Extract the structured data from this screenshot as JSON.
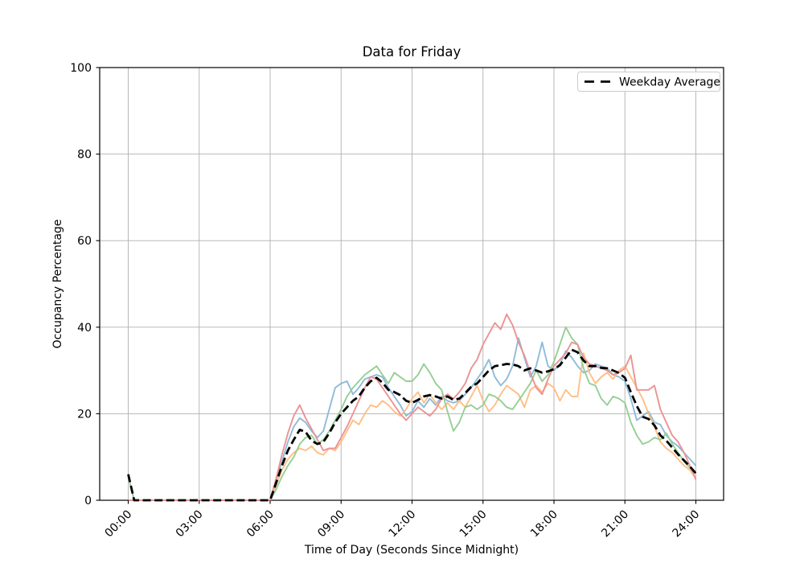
{
  "chart_data": {
    "type": "line",
    "title": "Data for Friday",
    "xlabel": "Time of Day (Seconds Since Midnight)",
    "ylabel": "Occupancy Percentage",
    "x_start_hour": 0,
    "x_step_hours": 0.25,
    "x_ticks_hours": [
      0,
      3,
      6,
      9,
      12,
      15,
      18,
      21,
      24
    ],
    "x_tick_labels": [
      "00:00",
      "03:00",
      "06:00",
      "09:00",
      "12:00",
      "15:00",
      "18:00",
      "21:00",
      "24:00"
    ],
    "y_ticks": [
      0,
      20,
      40,
      60,
      80,
      100
    ],
    "y_tick_labels": [
      "0",
      "20",
      "40",
      "60",
      "80",
      "100"
    ],
    "ylim": [
      0,
      100
    ],
    "xlim_hours": [
      -1.2,
      25.2
    ],
    "grid": true,
    "grid_color": "#b0b0b0",
    "legend": {
      "position": "upper right",
      "label": "Weekday Average"
    },
    "series": [
      {
        "name": "series-1",
        "color": "#8fbbd9",
        "style": "solid",
        "width": 1.9,
        "values": [
          0,
          0,
          0,
          0,
          0,
          0,
          0,
          0,
          0,
          0,
          0,
          0,
          0,
          0,
          0,
          0,
          0,
          0,
          0,
          0,
          0,
          0,
          0,
          0,
          0,
          4.5,
          9,
          13.5,
          17,
          19,
          18,
          16,
          14.5,
          16,
          21,
          26,
          27,
          27.5,
          24.5,
          26,
          28,
          28.5,
          29,
          28.5,
          26,
          24,
          22,
          19.5,
          20.5,
          23,
          21.5,
          23.5,
          22,
          24,
          23,
          22.5,
          23,
          24.5,
          26,
          28,
          30,
          32.5,
          28.5,
          26.5,
          28,
          31,
          37.5,
          33,
          28.5,
          31,
          36.5,
          31,
          30,
          31.5,
          34.5,
          33,
          31,
          29.5,
          30,
          31.5,
          31,
          30.5,
          29,
          28.5,
          27.5,
          23.5,
          18.5,
          19.5,
          20.5,
          18,
          17.5,
          15,
          13.5,
          12.5,
          11,
          9.5,
          8
        ]
      },
      {
        "name": "series-2",
        "color": "#ffbf86",
        "style": "solid",
        "width": 1.9,
        "values": [
          0,
          0,
          0,
          0,
          0,
          0,
          0,
          0,
          0,
          0,
          0,
          0,
          0,
          0,
          0,
          0,
          0,
          0,
          0,
          0,
          0,
          0,
          0,
          0,
          0,
          3.5,
          7,
          9.5,
          11,
          12,
          11.5,
          12.5,
          11,
          10.5,
          12,
          11.5,
          13.5,
          16,
          18.5,
          17.5,
          20,
          22,
          21.5,
          23,
          22,
          20.5,
          19.5,
          21,
          23.5,
          25,
          22.5,
          24.5,
          22.5,
          21,
          22.5,
          21,
          23,
          21.5,
          24,
          26.5,
          23,
          20.5,
          22,
          24.5,
          26.5,
          25.5,
          24.5,
          21.5,
          25.5,
          26.5,
          25,
          27,
          26,
          23,
          25.5,
          24,
          24,
          34,
          29.5,
          27,
          28.5,
          29.5,
          28,
          30,
          31,
          28.5,
          26,
          23.5,
          20,
          17,
          13.5,
          12,
          11,
          9.5,
          8,
          7,
          5
        ]
      },
      {
        "name": "series-3",
        "color": "#95cf95",
        "style": "solid",
        "width": 1.9,
        "values": [
          5.5,
          0,
          0,
          0,
          0,
          0,
          0,
          0,
          0,
          0,
          0,
          0,
          0,
          0,
          0,
          0,
          0,
          0,
          0,
          0,
          0,
          0,
          0,
          0,
          0,
          2.5,
          5.5,
          8,
          10,
          13,
          14.5,
          15,
          13,
          14,
          16,
          18.5,
          21,
          24,
          26,
          27.5,
          29,
          30,
          31,
          29,
          27,
          29.5,
          28.5,
          27.5,
          27.5,
          29,
          31.5,
          29.5,
          27,
          25.5,
          20.5,
          16,
          18,
          21.5,
          22,
          21,
          22,
          24.5,
          24,
          23,
          21.5,
          21,
          23,
          25,
          27,
          30,
          27.5,
          29,
          32,
          36,
          40,
          37.5,
          36,
          30.5,
          27,
          26.5,
          23.5,
          22,
          24,
          23.5,
          22.5,
          18,
          15,
          13,
          13.5,
          14.5,
          14,
          15.5,
          13,
          11,
          9,
          7.5,
          6.5
        ]
      },
      {
        "name": "series-4",
        "color": "#eb9394",
        "style": "solid",
        "width": 1.9,
        "values": [
          0,
          0,
          0,
          0,
          0,
          0,
          0,
          0,
          0,
          0,
          0,
          0,
          0,
          0,
          0,
          0,
          0,
          0,
          0,
          0,
          0,
          0,
          0,
          0,
          0,
          5,
          10.5,
          15.5,
          19.5,
          22,
          19,
          16.5,
          14,
          11.5,
          12,
          12,
          14.5,
          17,
          20,
          23,
          26,
          28.5,
          28,
          26,
          24,
          22,
          20,
          18.5,
          20,
          21.5,
          20.5,
          19.5,
          21,
          23.5,
          24.5,
          23.5,
          25,
          27,
          30.5,
          32.5,
          36,
          38.5,
          41,
          39.5,
          43,
          40.5,
          36.5,
          33.5,
          29.5,
          26,
          24.5,
          28,
          31,
          32.5,
          34,
          36.5,
          36,
          33,
          31.5,
          31,
          30.5,
          30,
          29,
          29.5,
          30.5,
          33.5,
          25.5,
          25.5,
          25.5,
          26.5,
          21,
          18,
          15,
          13.5,
          11,
          8,
          4.8
        ]
      },
      {
        "name": "Weekday Average",
        "color": "#000000",
        "style": "dashed",
        "width": 2.8,
        "values": [
          6,
          0,
          0,
          0,
          0,
          0,
          0,
          0,
          0,
          0,
          0,
          0,
          0,
          0,
          0,
          0,
          0,
          0,
          0,
          0,
          0,
          0,
          0,
          0,
          0,
          4,
          8,
          11.5,
          14,
          16.3,
          15.8,
          13.8,
          13,
          13.5,
          15.5,
          18,
          20,
          21.5,
          23,
          24,
          26,
          27.5,
          28.3,
          27.2,
          25.5,
          25,
          24.3,
          23,
          22.5,
          23.2,
          24,
          24.3,
          24,
          23.5,
          24,
          23.2,
          23.5,
          24.8,
          26.2,
          27,
          28.5,
          30,
          31,
          31.2,
          31.5,
          31.4,
          31,
          30,
          30.5,
          30,
          29.5,
          29.8,
          30.3,
          31.2,
          33,
          34.8,
          34.2,
          32.3,
          31,
          31,
          30.6,
          30.5,
          30,
          29.4,
          28.3,
          25,
          21.8,
          19.3,
          18.8,
          17.3,
          15,
          13.8,
          12.2,
          10.6,
          9.2,
          7.8,
          6.2
        ]
      }
    ]
  }
}
